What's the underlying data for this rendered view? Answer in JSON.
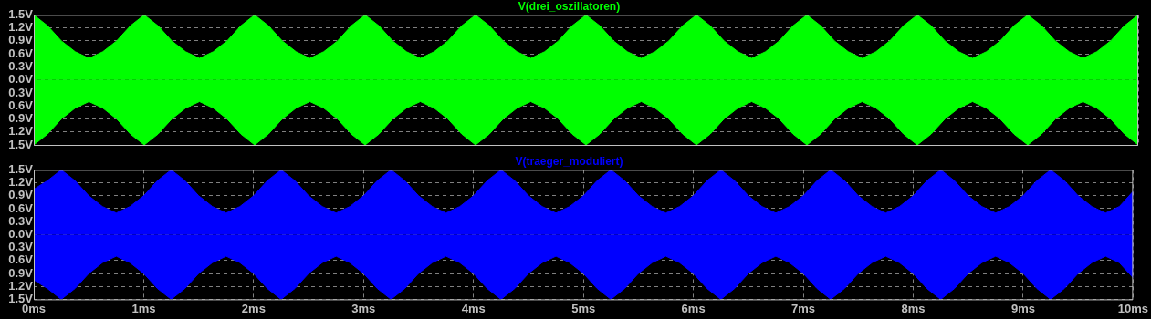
{
  "chart_data": [
    {
      "type": "area",
      "title": "V(drei_oszillatoren)",
      "x": [
        0,
        0.125,
        0.25,
        0.375,
        0.5,
        0.625,
        0.75,
        0.875,
        1,
        1.125,
        1.25,
        1.375,
        1.5,
        1.625,
        1.75,
        1.875,
        2,
        2.125,
        2.25,
        2.375,
        2.5,
        2.625,
        2.75,
        2.875,
        3,
        3.125,
        3.25,
        3.375,
        3.5,
        3.625,
        3.75,
        3.875,
        4,
        4.125,
        4.25,
        4.375,
        4.5,
        4.625,
        4.75,
        4.875,
        5,
        5.125,
        5.25,
        5.375,
        5.5,
        5.625,
        5.75,
        5.875,
        6,
        6.125,
        6.25,
        6.375,
        6.5,
        6.625,
        6.75,
        6.875,
        7,
        7.125,
        7.25,
        7.375,
        7.5,
        7.625,
        7.75,
        7.875,
        8,
        8.125,
        8.25,
        8.375,
        8.5,
        8.625,
        8.75,
        8.875,
        9,
        9.125,
        9.25,
        9.375,
        9.5,
        9.625,
        9.75,
        9.875,
        10
      ],
      "series": [
        {
          "color": "#00ff00",
          "values": [
            1.5,
            1.25,
            0.9,
            0.65,
            0.5,
            0.65,
            0.9,
            1.25,
            1.5,
            1.25,
            0.9,
            0.65,
            0.5,
            0.65,
            0.9,
            1.25,
            1.5,
            1.25,
            0.9,
            0.65,
            0.5,
            0.65,
            0.9,
            1.25,
            1.5,
            1.25,
            0.9,
            0.65,
            0.5,
            0.65,
            0.9,
            1.25,
            1.5,
            1.25,
            0.9,
            0.65,
            0.5,
            0.65,
            0.9,
            1.25,
            1.5,
            1.25,
            0.9,
            0.65,
            0.5,
            0.65,
            0.9,
            1.25,
            1.5,
            1.25,
            0.9,
            0.65,
            0.5,
            0.65,
            0.9,
            1.25,
            1.5,
            1.25,
            0.9,
            0.65,
            0.5,
            0.65,
            0.9,
            1.25,
            1.5,
            1.25,
            0.9,
            0.65,
            0.5,
            0.65,
            0.9,
            1.25,
            1.5,
            1.25,
            0.9,
            0.65,
            0.5,
            0.65,
            0.9,
            1.25,
            1.5
          ]
        },
        {
          "color": "#00ff00",
          "values": [
            -1.5,
            -1.25,
            -0.9,
            -0.65,
            -0.5,
            -0.65,
            -0.9,
            -1.25,
            -1.5,
            -1.25,
            -0.9,
            -0.65,
            -0.5,
            -0.65,
            -0.9,
            -1.25,
            -1.5,
            -1.25,
            -0.9,
            -0.65,
            -0.5,
            -0.65,
            -0.9,
            -1.25,
            -1.5,
            -1.25,
            -0.9,
            -0.65,
            -0.5,
            -0.65,
            -0.9,
            -1.25,
            -1.5,
            -1.25,
            -0.9,
            -0.65,
            -0.5,
            -0.65,
            -0.9,
            -1.25,
            -1.5,
            -1.25,
            -0.9,
            -0.65,
            -0.5,
            -0.65,
            -0.9,
            -1.25,
            -1.5,
            -1.25,
            -0.9,
            -0.65,
            -0.5,
            -0.65,
            -0.9,
            -1.25,
            -1.5,
            -1.25,
            -0.9,
            -0.65,
            -0.5,
            -0.65,
            -0.9,
            -1.25,
            -1.5,
            -1.25,
            -0.9,
            -0.65,
            -0.5,
            -0.65,
            -0.9,
            -1.25,
            -1.5,
            -1.25,
            -0.9,
            -0.65,
            -0.5,
            -0.65,
            -0.9,
            -1.25,
            -1.5
          ]
        }
      ],
      "xlim": [
        0,
        10
      ],
      "xticks": [
        0,
        1,
        2,
        3,
        4,
        5,
        6,
        7,
        8,
        9,
        10
      ],
      "ylim": [
        -1.5,
        1.5
      ],
      "yticks": [
        {
          "value": 1.5,
          "label": "1.5V"
        },
        {
          "value": 1.2,
          "label": "1.2V"
        },
        {
          "value": 0.9,
          "label": "0.9V"
        },
        {
          "value": 0.6,
          "label": "0.6V"
        },
        {
          "value": 0.3,
          "label": "0.3V"
        },
        {
          "value": 0,
          "label": "0.0V"
        },
        {
          "value": -0.3,
          "label": "0.3V"
        },
        {
          "value": -0.6,
          "label": "0.6V"
        },
        {
          "value": -0.9,
          "label": "0.9V"
        },
        {
          "value": -1.2,
          "label": "1.2V"
        },
        {
          "value": -1.5,
          "label": "1.5V"
        }
      ],
      "grid": true,
      "legend": false,
      "tick_labels": "y"
    },
    {
      "type": "area",
      "title": "V(traeger_moduliert)",
      "x": [
        0,
        0.125,
        0.25,
        0.375,
        0.5,
        0.625,
        0.75,
        0.875,
        1,
        1.125,
        1.25,
        1.375,
        1.5,
        1.625,
        1.75,
        1.875,
        2,
        2.125,
        2.25,
        2.375,
        2.5,
        2.625,
        2.75,
        2.875,
        3,
        3.125,
        3.25,
        3.375,
        3.5,
        3.625,
        3.75,
        3.875,
        4,
        4.125,
        4.25,
        4.375,
        4.5,
        4.625,
        4.75,
        4.875,
        5,
        5.125,
        5.25,
        5.375,
        5.5,
        5.625,
        5.75,
        5.875,
        6,
        6.125,
        6.25,
        6.375,
        6.5,
        6.625,
        6.75,
        6.875,
        7,
        7.125,
        7.25,
        7.375,
        7.5,
        7.625,
        7.75,
        7.875,
        8,
        8.125,
        8.25,
        8.375,
        8.5,
        8.625,
        8.75,
        8.875,
        9,
        9.125,
        9.25,
        9.375,
        9.5,
        9.625,
        9.75,
        9.875,
        10
      ],
      "series": [
        {
          "color": "#0000ff",
          "values": [
            1.05,
            1.25,
            1.5,
            1.25,
            0.9,
            0.65,
            0.5,
            0.65,
            0.9,
            1.25,
            1.5,
            1.25,
            0.9,
            0.65,
            0.5,
            0.65,
            0.9,
            1.25,
            1.5,
            1.25,
            0.9,
            0.65,
            0.5,
            0.65,
            0.9,
            1.25,
            1.5,
            1.25,
            0.9,
            0.65,
            0.5,
            0.65,
            0.9,
            1.25,
            1.5,
            1.25,
            0.9,
            0.65,
            0.5,
            0.65,
            0.9,
            1.25,
            1.5,
            1.25,
            0.9,
            0.65,
            0.5,
            0.65,
            0.9,
            1.25,
            1.5,
            1.25,
            0.9,
            0.65,
            0.5,
            0.65,
            0.9,
            1.25,
            1.5,
            1.25,
            0.9,
            0.65,
            0.5,
            0.65,
            0.9,
            1.25,
            1.5,
            1.25,
            0.9,
            0.65,
            0.5,
            0.65,
            0.9,
            1.25,
            1.5,
            1.25,
            0.9,
            0.65,
            0.5,
            0.65,
            1.0
          ]
        },
        {
          "color": "#0000ff",
          "values": [
            -1.05,
            -1.25,
            -1.5,
            -1.25,
            -0.9,
            -0.65,
            -0.5,
            -0.65,
            -0.9,
            -1.25,
            -1.5,
            -1.25,
            -0.9,
            -0.65,
            -0.5,
            -0.65,
            -0.9,
            -1.25,
            -1.5,
            -1.25,
            -0.9,
            -0.65,
            -0.5,
            -0.65,
            -0.9,
            -1.25,
            -1.5,
            -1.25,
            -0.9,
            -0.65,
            -0.5,
            -0.65,
            -0.9,
            -1.25,
            -1.5,
            -1.25,
            -0.9,
            -0.65,
            -0.5,
            -0.65,
            -0.9,
            -1.25,
            -1.5,
            -1.25,
            -0.9,
            -0.65,
            -0.5,
            -0.65,
            -0.9,
            -1.25,
            -1.5,
            -1.25,
            -0.9,
            -0.65,
            -0.5,
            -0.65,
            -0.9,
            -1.25,
            -1.5,
            -1.25,
            -0.9,
            -0.65,
            -0.5,
            -0.65,
            -0.9,
            -1.25,
            -1.5,
            -1.25,
            -0.9,
            -0.65,
            -0.5,
            -0.65,
            -0.9,
            -1.25,
            -1.5,
            -1.25,
            -0.9,
            -0.65,
            -0.5,
            -0.65,
            -1.0
          ]
        }
      ],
      "xlim": [
        0,
        10
      ],
      "xticks": [
        {
          "value": 0,
          "label": "0ms"
        },
        {
          "value": 1,
          "label": "1ms"
        },
        {
          "value": 2,
          "label": "2ms"
        },
        {
          "value": 3,
          "label": "3ms"
        },
        {
          "value": 4,
          "label": "4ms"
        },
        {
          "value": 5,
          "label": "5ms"
        },
        {
          "value": 6,
          "label": "6ms"
        },
        {
          "value": 7,
          "label": "7ms"
        },
        {
          "value": 8,
          "label": "8ms"
        },
        {
          "value": 9,
          "label": "9ms"
        },
        {
          "value": 10,
          "label": "10ms"
        }
      ],
      "ylim": [
        -1.5,
        1.5
      ],
      "yticks": [
        {
          "value": 1.5,
          "label": "1.5V"
        },
        {
          "value": 1.2,
          "label": "1.2V"
        },
        {
          "value": 0.9,
          "label": "0.9V"
        },
        {
          "value": 0.6,
          "label": "0.6V"
        },
        {
          "value": 0.3,
          "label": "0.3V"
        },
        {
          "value": 0,
          "label": "0.0V"
        },
        {
          "value": -0.3,
          "label": "0.3V"
        },
        {
          "value": -0.6,
          "label": "0.6V"
        },
        {
          "value": -0.9,
          "label": "0.9V"
        },
        {
          "value": -1.2,
          "label": "1.2V"
        },
        {
          "value": -1.5,
          "label": "1.5V"
        }
      ],
      "grid": true,
      "legend": false
    }
  ]
}
